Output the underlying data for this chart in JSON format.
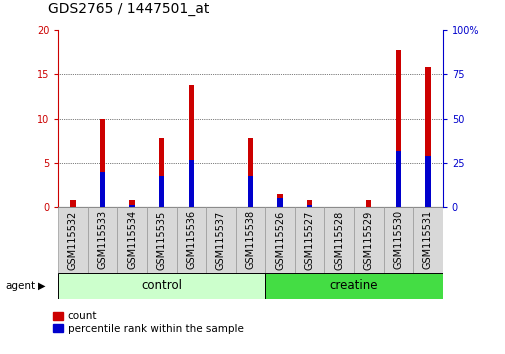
{
  "title": "GDS2765 / 1447501_at",
  "categories": [
    "GSM115532",
    "GSM115533",
    "GSM115534",
    "GSM115535",
    "GSM115536",
    "GSM115537",
    "GSM115538",
    "GSM115526",
    "GSM115527",
    "GSM115528",
    "GSM115529",
    "GSM115530",
    "GSM115531"
  ],
  "count_values": [
    0.8,
    10.0,
    0.8,
    7.8,
    13.8,
    0.0,
    7.8,
    1.5,
    0.8,
    0.0,
    0.8,
    17.8,
    15.8
  ],
  "percentile_values": [
    0.0,
    20.0,
    1.0,
    17.5,
    26.5,
    0.0,
    17.5,
    5.0,
    1.0,
    0.0,
    0.0,
    31.5,
    29.0
  ],
  "left_ylim": [
    0,
    20
  ],
  "right_ylim": [
    0,
    100
  ],
  "left_yticks": [
    0,
    5,
    10,
    15,
    20
  ],
  "right_yticks": [
    0,
    25,
    50,
    75,
    100
  ],
  "left_yticklabels": [
    "0",
    "5",
    "10",
    "15",
    "20"
  ],
  "right_yticklabels": [
    "0",
    "25",
    "50",
    "75",
    "100%"
  ],
  "count_color": "#cc0000",
  "percentile_color": "#0000cc",
  "bar_width": 0.18,
  "group_labels": [
    "control",
    "creatine"
  ],
  "group_colors": [
    "#ccffcc",
    "#44dd44"
  ],
  "agent_label": "agent",
  "legend_count": "count",
  "legend_percentile": "percentile rank within the sample",
  "title_fontsize": 10,
  "tick_fontsize": 7,
  "label_fontsize": 7,
  "bg_color": "#d8d8d8"
}
